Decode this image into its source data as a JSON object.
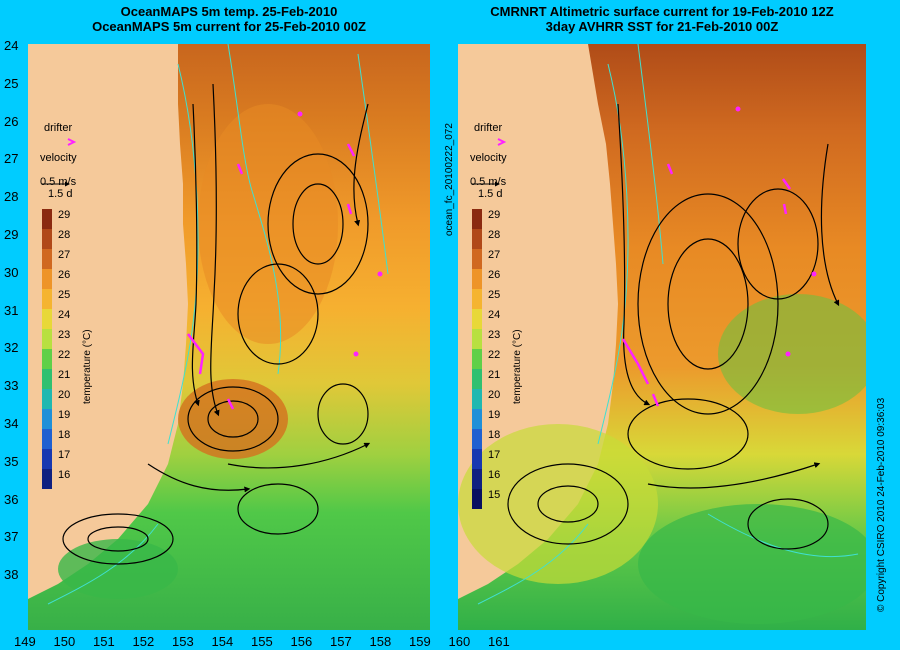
{
  "left_panel": {
    "title_line1": "OceanMAPS 5m temp. 25-Feb-2010",
    "title_line2": "OceanMAPS 5m current for 25-Feb-2010 00Z",
    "legend": {
      "drifter": "drifter",
      "velocity": "velocity",
      "speed": "0.5 m/s",
      "duration": "1.5 d"
    },
    "colorbar_ticks": [
      "29",
      "28",
      "27",
      "26",
      "25",
      "24",
      "23",
      "22",
      "21",
      "20",
      "19",
      "18",
      "17",
      "16"
    ],
    "colorbar_label": "temperature (°C)"
  },
  "right_panel": {
    "title_line1": "CMRNRT Altimetric surface current for 19-Feb-2010 12Z",
    "title_line2": "3day AVHRR SST for 21-Feb-2010 00Z",
    "legend": {
      "drifter": "drifter",
      "velocity": "velocity",
      "speed": "0.5 m/s",
      "duration": "1.5 d"
    },
    "colorbar_ticks": [
      "29",
      "28",
      "27",
      "26",
      "25",
      "24",
      "23",
      "22",
      "21",
      "20",
      "19",
      "18",
      "17",
      "16",
      "15"
    ],
    "colorbar_label": "temperature (°C)"
  },
  "y_ticks": [
    "24",
    "25",
    "26",
    "27",
    "28",
    "29",
    "30",
    "31",
    "32",
    "33",
    "34",
    "35",
    "36",
    "37",
    "38"
  ],
  "x_ticks": [
    "149",
    "150",
    "151",
    "152",
    "153",
    "154",
    "155",
    "156",
    "157",
    "158",
    "159",
    "160",
    "161"
  ],
  "product_id": "ocean_fc_20100222_072",
  "copyright": "© Copyright CSIRO 2010   24-Feb-2010 09:36:03",
  "colors": {
    "frame": "#00ccff",
    "land": "#f5c99a",
    "drifter": "#ff22ff",
    "contour": "#40e0d0"
  }
}
